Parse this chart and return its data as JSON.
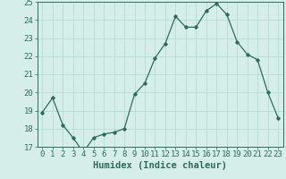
{
  "x": [
    0,
    1,
    2,
    3,
    4,
    5,
    6,
    7,
    8,
    9,
    10,
    11,
    12,
    13,
    14,
    15,
    16,
    17,
    18,
    19,
    20,
    21,
    22,
    23
  ],
  "y": [
    18.9,
    19.7,
    18.2,
    17.5,
    16.7,
    17.5,
    17.7,
    17.8,
    18.0,
    19.9,
    20.5,
    21.9,
    22.7,
    24.2,
    23.6,
    23.6,
    24.5,
    24.9,
    24.3,
    22.8,
    22.1,
    21.8,
    20.0,
    18.6
  ],
  "xlabel": "Humidex (Indice chaleur)",
  "ylim": [
    17,
    25
  ],
  "yticks": [
    17,
    18,
    19,
    20,
    21,
    22,
    23,
    24,
    25
  ],
  "xtick_labels": [
    "0",
    "1",
    "2",
    "3",
    "4",
    "5",
    "6",
    "7",
    "8",
    "9",
    "10",
    "11",
    "12",
    "13",
    "14",
    "15",
    "16",
    "17",
    "18",
    "19",
    "20",
    "21",
    "22",
    "23"
  ],
  "line_color": "#2e6b5e",
  "marker": "D",
  "marker_size": 1.8,
  "bg_color": "#d6eeea",
  "grid_color": "#b8dbd6",
  "axis_color": "#2e6b5e",
  "label_color": "#2e6b5e",
  "tick_color": "#2e6b5e",
  "xlabel_fontsize": 7.5,
  "tick_fontsize": 6.5
}
